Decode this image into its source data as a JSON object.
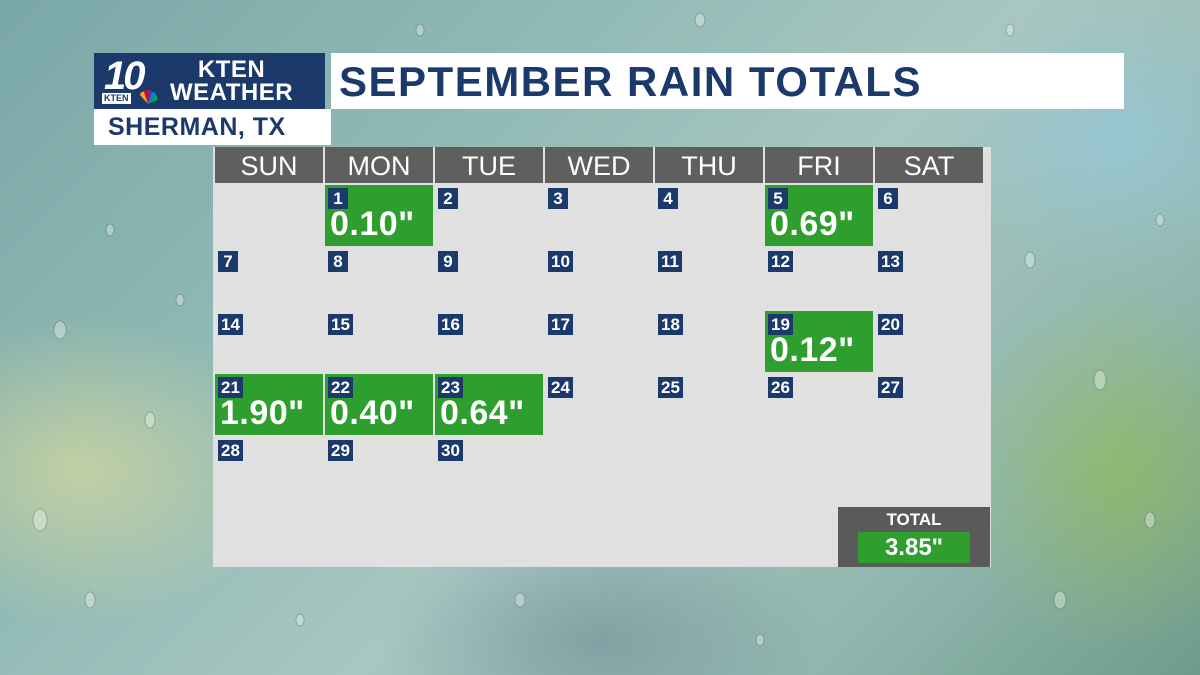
{
  "logo": {
    "channel_number": "10",
    "station": "KTEN",
    "line1": "KTEN",
    "line2": "WEATHER"
  },
  "location": "SHERMAN, TX",
  "title": "SEPTEMBER RAIN TOTALS",
  "calendar": {
    "weekdays": [
      "SUN",
      "MON",
      "TUE",
      "WED",
      "THU",
      "FRI",
      "SAT"
    ],
    "first_weekday_index": 1,
    "days_in_month": 30,
    "rain": {
      "1": "0.10\"",
      "5": "0.69\"",
      "19": "0.12\"",
      "21": "1.90\"",
      "22": "0.40\"",
      "23": "0.64\""
    }
  },
  "total": {
    "label": "TOTAL",
    "value": "3.85\""
  },
  "colors": {
    "navy": "#1b3a6b",
    "rain_green": "#2e9e2e",
    "header_gray": "#5f5f5f",
    "grid_bg": "#e0e0e0"
  }
}
